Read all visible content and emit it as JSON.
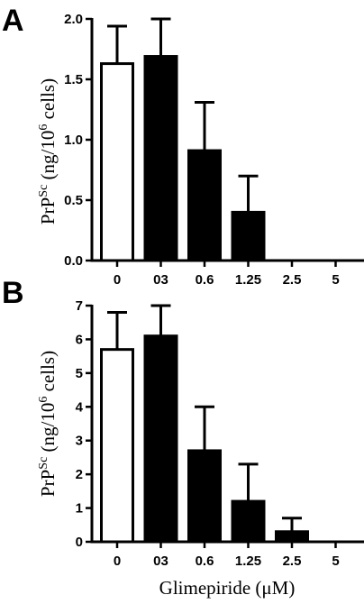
{
  "chart_data": [
    {
      "panel": "A",
      "type": "bar",
      "categories": [
        "0",
        "03",
        "0.6",
        "1.25",
        "2.5",
        "5"
      ],
      "values": [
        1.63,
        1.69,
        0.91,
        0.4,
        0,
        0
      ],
      "errors": [
        0.31,
        0.31,
        0.4,
        0.3,
        0,
        0
      ],
      "fills": [
        "#ffffff",
        "#000000",
        "#000000",
        "#000000",
        "#000000",
        "#000000"
      ],
      "ylim": [
        0,
        2.0
      ],
      "yticks": [
        "0.0",
        "0.5",
        "1.0",
        "1.5",
        "2.0"
      ],
      "ylabel": {
        "main": "PrP",
        "sup1": "Sc",
        "mid": " (ng/10",
        "sup2": "6",
        "end": " cells)"
      },
      "xlabel": ""
    },
    {
      "panel": "B",
      "type": "bar",
      "categories": [
        "0",
        "03",
        "0.6",
        "1.25",
        "2.5",
        "5"
      ],
      "values": [
        5.7,
        6.1,
        2.7,
        1.2,
        0.3,
        0
      ],
      "errors": [
        1.1,
        0.9,
        1.3,
        1.1,
        0.4,
        0
      ],
      "fills": [
        "#ffffff",
        "#000000",
        "#000000",
        "#000000",
        "#000000",
        "#000000"
      ],
      "ylim": [
        0,
        7
      ],
      "yticks": [
        "0",
        "1",
        "2",
        "3",
        "4",
        "5",
        "6",
        "7"
      ],
      "ylabel": {
        "main": "PrP",
        "sup1": "Sc",
        "mid": " (ng/10",
        "sup2": "6",
        "end": " cells)"
      },
      "xlabel": "Glimepiride (μM)"
    }
  ]
}
